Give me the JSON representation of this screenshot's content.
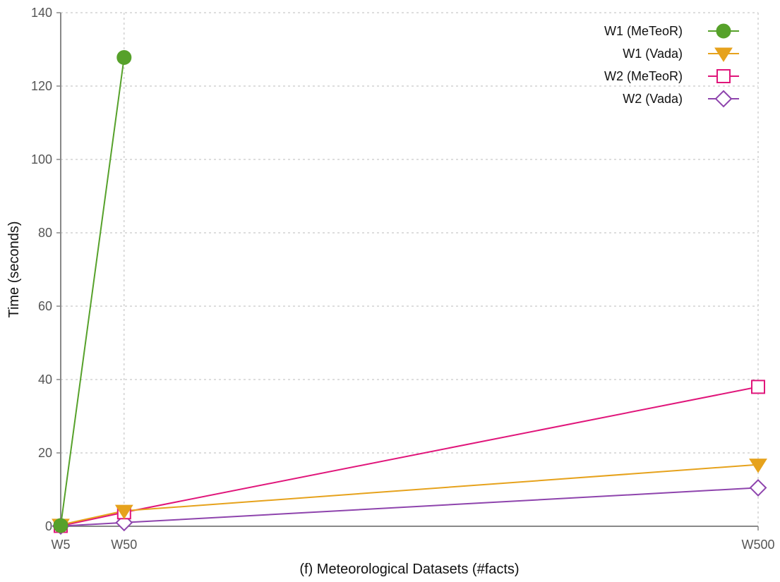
{
  "chart_data": {
    "type": "line",
    "title": "",
    "xlabel": "(f) Meteorological Datasets (#facts)",
    "ylabel": "Time (seconds)",
    "x_scale": "linear",
    "x": [
      5,
      50,
      500
    ],
    "x_tick_labels": [
      "W5",
      "W50",
      "W500"
    ],
    "xlim": [
      5,
      500
    ],
    "ylim": [
      0,
      140
    ],
    "y_ticks": [
      0,
      20,
      40,
      60,
      80,
      100,
      120,
      140
    ],
    "grid": true,
    "legend_position": "top-right",
    "series": [
      {
        "name": "W1 (MeTeoR)",
        "color": "#56a12a",
        "marker": "filled-circle",
        "x": [
          5,
          50
        ],
        "values": [
          0.2,
          127.8
        ]
      },
      {
        "name": "W1 (Vada)",
        "color": "#e6a21c",
        "marker": "filled-down-triangle",
        "x": [
          5,
          50,
          500
        ],
        "values": [
          0.4,
          4.2,
          16.8
        ]
      },
      {
        "name": "W2 (MeTeoR)",
        "color": "#e0157a",
        "marker": "open-square",
        "x": [
          5,
          50,
          500
        ],
        "values": [
          0.1,
          3.8,
          38.0
        ]
      },
      {
        "name": "W2 (Vada)",
        "color": "#8e44ad",
        "marker": "open-diamond",
        "x": [
          5,
          50,
          500
        ],
        "values": [
          0.05,
          1.0,
          10.5
        ]
      }
    ]
  }
}
